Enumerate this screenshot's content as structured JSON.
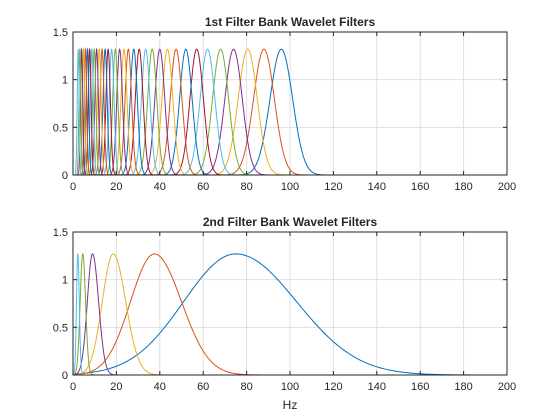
{
  "colors": [
    "#0072BD",
    "#D95319",
    "#EDB120",
    "#7E2F8E",
    "#77AC30",
    "#4DBEEE",
    "#A2142F"
  ],
  "chart_data": [
    {
      "type": "line",
      "title": "1st Filter Bank Wavelet Filters",
      "xlabel": "",
      "ylabel": "",
      "xlim": [
        0,
        200
      ],
      "ylim": [
        0,
        1.5
      ],
      "xticks": [
        0,
        20,
        40,
        60,
        80,
        100,
        120,
        140,
        160,
        180,
        200
      ],
      "yticks": [
        0,
        0.5,
        1,
        1.5
      ],
      "xtick_labels": [
        "0",
        "20",
        "40",
        "60",
        "80",
        "100",
        "120",
        "140",
        "160",
        "180",
        "200"
      ],
      "ytick_labels": [
        "0",
        "0.5",
        "1",
        "1.5"
      ],
      "grid": true,
      "curve_shape": "gaussian",
      "series": [
        {
          "center": 96,
          "peak": 1.32,
          "width": 5.2
        },
        {
          "center": 88,
          "peak": 1.32,
          "width": 4.8
        },
        {
          "center": 80.5,
          "peak": 1.32,
          "width": 4.4
        },
        {
          "center": 74,
          "peak": 1.32,
          "width": 4.0
        },
        {
          "center": 68,
          "peak": 1.32,
          "width": 3.7
        },
        {
          "center": 62,
          "peak": 1.32,
          "width": 3.4
        },
        {
          "center": 57,
          "peak": 1.32,
          "width": 3.1
        },
        {
          "center": 52,
          "peak": 1.32,
          "width": 2.9
        },
        {
          "center": 47.5,
          "peak": 1.32,
          "width": 2.7
        },
        {
          "center": 43.5,
          "peak": 1.32,
          "width": 2.5
        },
        {
          "center": 40,
          "peak": 1.32,
          "width": 2.3
        },
        {
          "center": 36.5,
          "peak": 1.32,
          "width": 2.1
        },
        {
          "center": 33.5,
          "peak": 1.32,
          "width": 1.95
        },
        {
          "center": 30.5,
          "peak": 1.32,
          "width": 1.8
        },
        {
          "center": 28,
          "peak": 1.32,
          "width": 1.65
        },
        {
          "center": 25.5,
          "peak": 1.32,
          "width": 1.5
        },
        {
          "center": 23.5,
          "peak": 1.32,
          "width": 1.4
        },
        {
          "center": 21.5,
          "peak": 1.32,
          "width": 1.3
        },
        {
          "center": 19.5,
          "peak": 1.32,
          "width": 1.2
        },
        {
          "center": 17.8,
          "peak": 1.32,
          "width": 1.1
        },
        {
          "center": 16.2,
          "peak": 1.32,
          "width": 1.0
        },
        {
          "center": 14.8,
          "peak": 1.32,
          "width": 0.95
        },
        {
          "center": 13.4,
          "peak": 1.32,
          "width": 0.9
        },
        {
          "center": 12.1,
          "peak": 1.32,
          "width": 0.85
        },
        {
          "center": 10.9,
          "peak": 1.32,
          "width": 0.8
        },
        {
          "center": 9.8,
          "peak": 1.32,
          "width": 0.75
        },
        {
          "center": 8.7,
          "peak": 1.32,
          "width": 0.7
        },
        {
          "center": 7.7,
          "peak": 1.32,
          "width": 0.65
        },
        {
          "center": 6.7,
          "peak": 1.32,
          "width": 0.6
        },
        {
          "center": 5.8,
          "peak": 1.32,
          "width": 0.55
        },
        {
          "center": 4.9,
          "peak": 1.32,
          "width": 0.5
        },
        {
          "center": 4.0,
          "peak": 1.32,
          "width": 0.5
        },
        {
          "center": 3.2,
          "peak": 1.32,
          "width": 0.45
        },
        {
          "center": 2.4,
          "peak": 1.32,
          "width": 0.45
        }
      ]
    },
    {
      "type": "line",
      "title": "2nd Filter Bank Wavelet Filters",
      "xlabel": "Hz",
      "ylabel": "",
      "xlim": [
        0,
        200
      ],
      "ylim": [
        0,
        1.5
      ],
      "xticks": [
        0,
        20,
        40,
        60,
        80,
        100,
        120,
        140,
        160,
        180,
        200
      ],
      "yticks": [
        0,
        0.5,
        1,
        1.5
      ],
      "xtick_labels": [
        "0",
        "20",
        "40",
        "60",
        "80",
        "100",
        "120",
        "140",
        "160",
        "180",
        "200"
      ],
      "ytick_labels": [
        "0",
        "0.5",
        "1",
        "1.5"
      ],
      "grid": true,
      "curve_shape": "gaussian",
      "series": [
        {
          "center": 75,
          "peak": 1.27,
          "width_left": 24,
          "width_right": 28
        },
        {
          "center": 37.5,
          "peak": 1.27,
          "width_left": 11,
          "width_right": 12.5
        },
        {
          "center": 18.5,
          "peak": 1.27,
          "width_left": 5,
          "width_right": 5.8
        },
        {
          "center": 9,
          "peak": 1.27,
          "width_left": 2.4,
          "width_right": 2.8
        },
        {
          "center": 4.5,
          "peak": 1.27,
          "width_left": 1.2,
          "width_right": 1.3
        },
        {
          "center": 2.2,
          "peak": 1.27,
          "width_left": 0.6,
          "width_right": 0.7
        }
      ]
    }
  ]
}
